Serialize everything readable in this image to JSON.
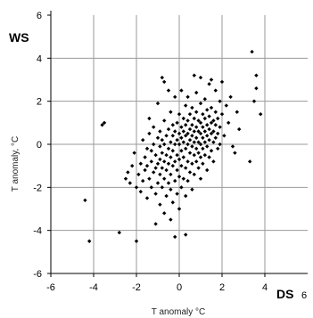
{
  "chart_data": {
    "type": "scatter",
    "xlabel": "T anomaly °C",
    "ylabel": "T anomaly, °C",
    "x_corner_label": "DS",
    "y_corner_label": "WS",
    "xlim": [
      -6,
      6
    ],
    "ylim": [
      -6,
      6
    ],
    "grid": true,
    "x_ticks": [
      "-6",
      "-4",
      "-2",
      "0",
      "2",
      "4"
    ],
    "x_end_tick": "6",
    "y_ticks": [
      "-6",
      "-4",
      "-2",
      "0",
      "2",
      "4",
      "6"
    ],
    "marker_color": "#000000",
    "grid_color": "#9a9a9a",
    "points": [
      [
        -4.4,
        -2.6
      ],
      [
        -4.2,
        -4.5
      ],
      [
        -3.6,
        0.9
      ],
      [
        -3.5,
        1.0
      ],
      [
        -2.8,
        -4.1
      ],
      [
        -2.5,
        -1.6
      ],
      [
        -2.4,
        -1.3
      ],
      [
        -2.3,
        -1.8
      ],
      [
        -2.2,
        -1.0
      ],
      [
        -2.1,
        -0.4
      ],
      [
        -2.0,
        -4.5
      ],
      [
        -2.0,
        -2.0
      ],
      [
        -1.9,
        -1.4
      ],
      [
        -1.8,
        -2.2
      ],
      [
        -1.8,
        -0.9
      ],
      [
        -1.7,
        -1.7
      ],
      [
        -1.7,
        0.2
      ],
      [
        -1.6,
        -1.2
      ],
      [
        -1.6,
        -0.6
      ],
      [
        -1.5,
        -2.5
      ],
      [
        -1.5,
        -1.0
      ],
      [
        -1.5,
        -0.2
      ],
      [
        -1.4,
        -1.6
      ],
      [
        -1.4,
        1.2
      ],
      [
        -1.4,
        0.5
      ],
      [
        -1.3,
        -2.0
      ],
      [
        -1.3,
        -0.8
      ],
      [
        -1.3,
        -0.3
      ],
      [
        -1.2,
        -1.3
      ],
      [
        -1.2,
        0.0
      ],
      [
        -1.2,
        0.8
      ],
      [
        -1.1,
        -3.7
      ],
      [
        -1.1,
        -2.3
      ],
      [
        -1.1,
        -1.1
      ],
      [
        -1.1,
        -0.5
      ],
      [
        -1.0,
        -1.8
      ],
      [
        -1.0,
        -0.9
      ],
      [
        -1.0,
        0.3
      ],
      [
        -1.0,
        1.9
      ],
      [
        -0.9,
        -2.8
      ],
      [
        -0.9,
        -1.4
      ],
      [
        -0.9,
        -0.7
      ],
      [
        -0.9,
        -0.1
      ],
      [
        -0.9,
        0.6
      ],
      [
        -0.8,
        3.1
      ],
      [
        -0.8,
        -2.0
      ],
      [
        -0.8,
        -1.1
      ],
      [
        -0.8,
        -0.4
      ],
      [
        -0.8,
        0.2
      ],
      [
        -0.7,
        2.9
      ],
      [
        -0.7,
        -3.2
      ],
      [
        -0.7,
        -1.6
      ],
      [
        -0.7,
        -0.8
      ],
      [
        -0.7,
        0.0
      ],
      [
        -0.7,
        1.1
      ],
      [
        -0.6,
        -2.4
      ],
      [
        -0.6,
        -1.2
      ],
      [
        -0.6,
        -0.5
      ],
      [
        -0.6,
        0.4
      ],
      [
        -0.5,
        2.5
      ],
      [
        -0.5,
        -1.8
      ],
      [
        -0.5,
        -0.9
      ],
      [
        -0.5,
        -0.2
      ],
      [
        -0.5,
        0.7
      ],
      [
        -0.4,
        -3.5
      ],
      [
        -0.4,
        -2.1
      ],
      [
        -0.4,
        -1.4
      ],
      [
        -0.4,
        -0.6
      ],
      [
        -0.4,
        0.1
      ],
      [
        -0.4,
        1.5
      ],
      [
        -0.3,
        -2.7
      ],
      [
        -0.3,
        -1.0
      ],
      [
        -0.3,
        -0.3
      ],
      [
        -0.3,
        0.4
      ],
      [
        -0.3,
        0.9
      ],
      [
        -0.2,
        -4.3
      ],
      [
        -0.2,
        -1.7
      ],
      [
        -0.2,
        -0.8
      ],
      [
        -0.2,
        0.0
      ],
      [
        -0.2,
        0.6
      ],
      [
        -0.2,
        2.2
      ],
      [
        -0.1,
        -2.3
      ],
      [
        -0.1,
        -1.2
      ],
      [
        -0.1,
        -0.5
      ],
      [
        -0.1,
        0.2
      ],
      [
        -0.1,
        1.0
      ],
      [
        0.0,
        -3.0
      ],
      [
        0.0,
        -1.5
      ],
      [
        0.0,
        -0.7
      ],
      [
        0.0,
        0.0
      ],
      [
        0.0,
        0.5
      ],
      [
        0.0,
        1.4
      ],
      [
        0.1,
        -2.0
      ],
      [
        0.1,
        -1.0
      ],
      [
        0.1,
        -0.3
      ],
      [
        0.1,
        0.3
      ],
      [
        0.1,
        0.8
      ],
      [
        0.1,
        2.5
      ],
      [
        0.2,
        -1.6
      ],
      [
        0.2,
        -0.6
      ],
      [
        0.2,
        0.1
      ],
      [
        0.2,
        0.6
      ],
      [
        0.2,
        1.2
      ],
      [
        0.3,
        -4.2
      ],
      [
        0.3,
        -2.4
      ],
      [
        0.3,
        -1.1
      ],
      [
        0.3,
        -0.2
      ],
      [
        0.3,
        0.4
      ],
      [
        0.3,
        0.9
      ],
      [
        0.3,
        1.8
      ],
      [
        0.4,
        -1.7
      ],
      [
        0.4,
        -0.8
      ],
      [
        0.4,
        0.0
      ],
      [
        0.4,
        0.5
      ],
      [
        0.4,
        1.1
      ],
      [
        0.4,
        2.2
      ],
      [
        0.5,
        -1.3
      ],
      [
        0.5,
        -0.4
      ],
      [
        0.5,
        0.2
      ],
      [
        0.5,
        0.7
      ],
      [
        0.5,
        1.4
      ],
      [
        0.6,
        -2.1
      ],
      [
        0.6,
        -0.9
      ],
      [
        0.6,
        -0.1
      ],
      [
        0.6,
        0.4
      ],
      [
        0.6,
        0.9
      ],
      [
        0.6,
        1.7
      ],
      [
        0.7,
        3.2
      ],
      [
        0.7,
        -1.4
      ],
      [
        0.7,
        -0.5
      ],
      [
        0.7,
        0.1
      ],
      [
        0.7,
        0.6
      ],
      [
        0.7,
        1.2
      ],
      [
        0.8,
        -0.8
      ],
      [
        0.8,
        -0.2
      ],
      [
        0.8,
        0.3
      ],
      [
        0.8,
        0.8
      ],
      [
        0.8,
        1.5
      ],
      [
        0.8,
        2.4
      ],
      [
        0.9,
        -1.1
      ],
      [
        0.9,
        -0.4
      ],
      [
        0.9,
        0.1
      ],
      [
        0.9,
        0.6
      ],
      [
        0.9,
        1.1
      ],
      [
        1.0,
        3.1
      ],
      [
        1.0,
        -1.6
      ],
      [
        1.0,
        -0.6
      ],
      [
        1.0,
        0.0
      ],
      [
        1.0,
        0.5
      ],
      [
        1.0,
        1.0
      ],
      [
        1.0,
        1.9
      ],
      [
        1.1,
        -0.9
      ],
      [
        1.1,
        -0.2
      ],
      [
        1.1,
        0.3
      ],
      [
        1.1,
        0.8
      ],
      [
        1.1,
        1.4
      ],
      [
        1.2,
        -0.5
      ],
      [
        1.2,
        0.1
      ],
      [
        1.2,
        0.6
      ],
      [
        1.2,
        1.2
      ],
      [
        1.2,
        2.1
      ],
      [
        1.3,
        -1.2
      ],
      [
        1.3,
        -0.1
      ],
      [
        1.3,
        0.4
      ],
      [
        1.3,
        0.9
      ],
      [
        1.3,
        1.6
      ],
      [
        1.4,
        2.8
      ],
      [
        1.4,
        -0.6
      ],
      [
        1.4,
        0.2
      ],
      [
        1.4,
        0.7
      ],
      [
        1.4,
        1.3
      ],
      [
        1.5,
        3.0
      ],
      [
        1.5,
        -0.3
      ],
      [
        1.5,
        0.5
      ],
      [
        1.5,
        1.0
      ],
      [
        1.5,
        1.7
      ],
      [
        1.6,
        -0.8
      ],
      [
        1.6,
        0.1
      ],
      [
        1.6,
        0.6
      ],
      [
        1.6,
        1.1
      ],
      [
        1.7,
        2.5
      ],
      [
        1.7,
        0.3
      ],
      [
        1.7,
        0.9
      ],
      [
        1.7,
        1.5
      ],
      [
        1.8,
        -0.2
      ],
      [
        1.8,
        0.5
      ],
      [
        1.8,
        1.2
      ],
      [
        1.9,
        2.0
      ],
      [
        1.9,
        0.0
      ],
      [
        1.9,
        0.8
      ],
      [
        2.0,
        1.4
      ],
      [
        2.0,
        2.9
      ],
      [
        2.1,
        0.4
      ],
      [
        2.2,
        1.8
      ],
      [
        2.3,
        1.0
      ],
      [
        2.4,
        2.2
      ],
      [
        2.5,
        -0.1
      ],
      [
        2.6,
        -0.4
      ],
      [
        2.8,
        0.7
      ],
      [
        3.3,
        -0.8
      ],
      [
        3.4,
        4.3
      ],
      [
        3.6,
        3.2
      ],
      [
        3.6,
        2.6
      ],
      [
        3.8,
        1.4
      ],
      [
        3.5,
        2.0
      ],
      [
        2.7,
        1.5
      ]
    ]
  }
}
